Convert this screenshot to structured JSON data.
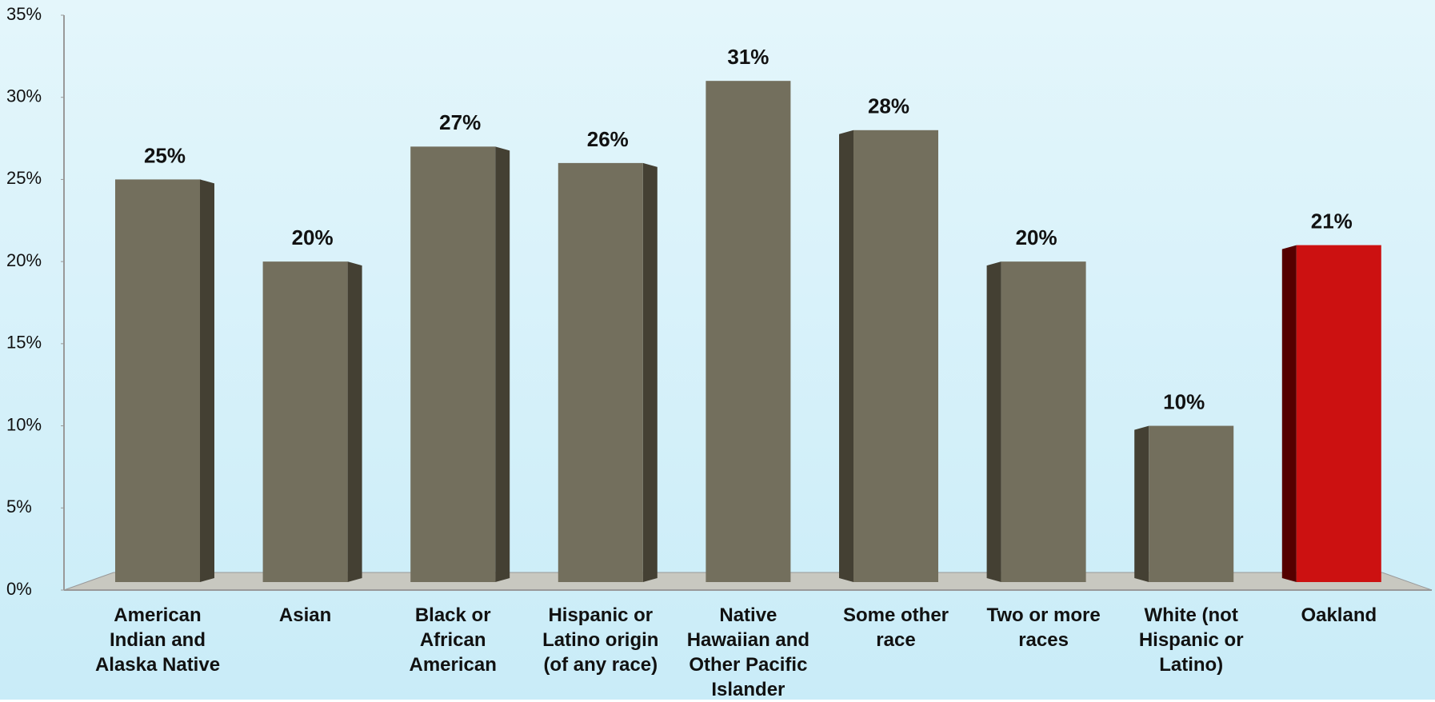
{
  "chart_data": {
    "type": "bar",
    "categories": [
      "American Indian and Alaska Native",
      "Asian",
      "Black or African American",
      "Hispanic or Latino origin (of any race)",
      "Native Hawaiian and Other Pacific Islander",
      "Some other race",
      "Two or more races",
      "White (not Hispanic or Latino)",
      "Oakland"
    ],
    "values": [
      25,
      20,
      27,
      26,
      31,
      28,
      20,
      10,
      21
    ],
    "value_labels": [
      "25%",
      "20%",
      "27%",
      "26%",
      "31%",
      "28%",
      "20%",
      "10%",
      "21%"
    ],
    "colors": [
      "#736f5d",
      "#736f5d",
      "#736f5d",
      "#736f5d",
      "#736f5d",
      "#736f5d",
      "#736f5d",
      "#736f5d",
      "#cc1111"
    ],
    "ylim": [
      0,
      35
    ],
    "yticks": [
      {
        "value": 0,
        "label": "0%"
      },
      {
        "value": 5,
        "label": "5%"
      },
      {
        "value": 10,
        "label": "10%"
      },
      {
        "value": 15,
        "label": "15%"
      },
      {
        "value": 20,
        "label": "20%"
      },
      {
        "value": 25,
        "label": "25%"
      },
      {
        "value": 30,
        "label": "30%"
      },
      {
        "value": 35,
        "label": "35%"
      }
    ],
    "grid": false
  }
}
